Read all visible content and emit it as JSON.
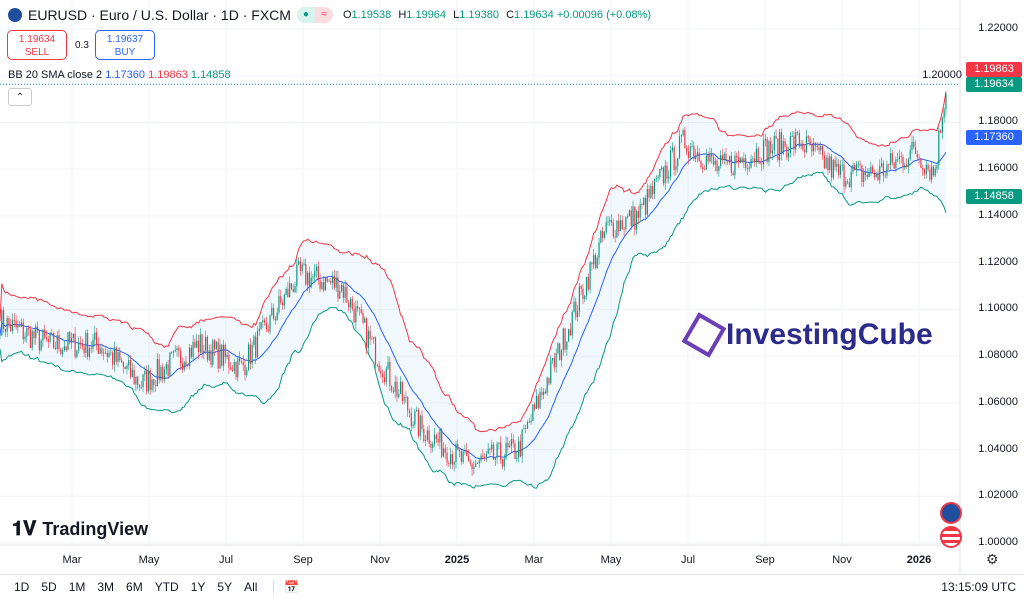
{
  "header": {
    "symbol": "EURUSD · Euro / U.S. Dollar · 1D · FXCM",
    "status_icon": "market-open-dot",
    "ohlc": {
      "o_label": "O",
      "o": "1.19538",
      "h_label": "H",
      "h": "1.19964",
      "l_label": "L",
      "l": "1.19380",
      "c_label": "C",
      "c": "1.19634",
      "change": "+0.00096 (+0.08%)"
    }
  },
  "trade": {
    "sell_price": "1.19634",
    "sell_label": "SELL",
    "spread": "0.3",
    "buy_price": "1.19637",
    "buy_label": "BUY"
  },
  "indicator": {
    "name": "BB 20 SMA close 2",
    "basis": "1.17360",
    "upper": "1.19863",
    "lower": "1.14858"
  },
  "price_labels": {
    "upper": "1.19863",
    "last": "1.19634",
    "basis": "1.17360",
    "lower": "1.14858"
  },
  "colors": {
    "up": "#089981",
    "down": "#f23645",
    "basis": "#2962ff",
    "upper": "#f23645",
    "lower": "#089981",
    "fill": "#2196f3"
  },
  "watermark": "InvestingCube",
  "tv_logo": "TradingView",
  "timeframes": [
    "1D",
    "5D",
    "1M",
    "3M",
    "6M",
    "YTD",
    "1Y",
    "5Y",
    "All"
  ],
  "clock": "13:15:09 UTC",
  "chart_data": {
    "type": "candlestick",
    "yaxis": {
      "ticks": [
        "1.22000",
        "1.20000",
        "1.18000",
        "1.16000",
        "1.14000",
        "1.12000",
        "1.10000",
        "1.08000",
        "1.06000",
        "1.04000",
        "1.02000",
        "1.00000"
      ],
      "range": [
        1.0,
        1.22
      ]
    },
    "xaxis": {
      "ticks": [
        "Mar",
        "May",
        "Jul",
        "Sep",
        "Nov",
        "2025",
        "Mar",
        "May",
        "Jul",
        "Sep",
        "Nov",
        "2026"
      ],
      "tick_months": [
        2,
        4,
        6,
        8,
        10,
        12,
        14,
        16,
        18,
        20,
        22,
        24
      ],
      "range_months": [
        0.13,
        24.8
      ]
    },
    "close_path": [
      [
        0.13,
        1.095
      ],
      [
        1.4,
        1.085
      ],
      [
        2.7,
        1.085
      ],
      [
        3.8,
        1.068
      ],
      [
        5.3,
        1.085
      ],
      [
        6.4,
        1.075
      ],
      [
        7.9,
        1.115
      ],
      [
        9.0,
        1.11
      ],
      [
        10.0,
        1.078
      ],
      [
        11.0,
        1.05
      ],
      [
        12.3,
        1.033
      ],
      [
        13.6,
        1.04
      ],
      [
        14.6,
        1.08
      ],
      [
        15.9,
        1.135
      ],
      [
        16.7,
        1.14
      ],
      [
        17.9,
        1.172
      ],
      [
        18.8,
        1.16
      ],
      [
        19.9,
        1.168
      ],
      [
        20.9,
        1.172
      ],
      [
        21.9,
        1.158
      ],
      [
        22.9,
        1.158
      ],
      [
        23.9,
        1.168
      ],
      [
        24.4,
        1.158
      ],
      [
        24.7,
        1.196
      ]
    ]
  }
}
